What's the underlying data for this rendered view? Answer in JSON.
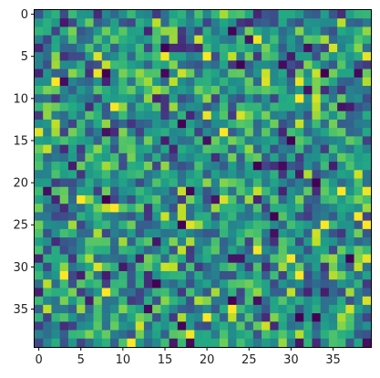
{
  "chart_data": {
    "type": "heatmap",
    "title": "",
    "xlabel": "",
    "ylabel": "",
    "colormap": "viridis",
    "rows": 40,
    "cols": 40,
    "xlim": [
      -0.5,
      39.5
    ],
    "ylim": [
      39.5,
      -0.5
    ],
    "x_ticks": [
      0,
      5,
      10,
      15,
      20,
      25,
      30,
      35
    ],
    "y_ticks": [
      0,
      5,
      10,
      15,
      20,
      25,
      30,
      35
    ],
    "x_tick_labels": [
      "0",
      "5",
      "10",
      "15",
      "20",
      "25",
      "30",
      "35"
    ],
    "y_tick_labels": [
      "0",
      "5",
      "10",
      "15",
      "20",
      "25",
      "30",
      "35"
    ],
    "value_range": [
      0,
      1
    ],
    "annotated_cells": [
      {
        "row": 5,
        "col": 7,
        "value": 0.95
      },
      {
        "row": 7,
        "col": 15,
        "value": 0.02
      },
      {
        "row": 10,
        "col": 15,
        "value": 0.15
      },
      {
        "row": 11,
        "col": 36,
        "value": 0.05
      },
      {
        "row": 11,
        "col": 37,
        "value": 0.08
      },
      {
        "row": 14,
        "col": 0,
        "value": 0.95
      },
      {
        "row": 14,
        "col": 22,
        "value": 1.0
      },
      {
        "row": 14,
        "col": 9,
        "value": 0.12
      },
      {
        "row": 24,
        "col": 15,
        "value": 0.92
      },
      {
        "row": 24,
        "col": 17,
        "value": 0.9
      },
      {
        "row": 25,
        "col": 18,
        "value": 0.95
      },
      {
        "row": 30,
        "col": 7,
        "value": 0.95
      },
      {
        "row": 30,
        "col": 15,
        "value": 0.92
      },
      {
        "row": 30,
        "col": 16,
        "value": 0.9
      },
      {
        "row": 26,
        "col": 33,
        "value": 0.92
      },
      {
        "row": 33,
        "col": 34,
        "value": 0.08
      },
      {
        "row": 33,
        "col": 32,
        "value": 0.1
      },
      {
        "row": 30,
        "col": 38,
        "value": 0.9
      },
      {
        "row": 22,
        "col": 2,
        "value": 0.1
      }
    ],
    "colors": {
      "low": "#440154",
      "mid": "#21918c",
      "high": "#fde725"
    }
  }
}
